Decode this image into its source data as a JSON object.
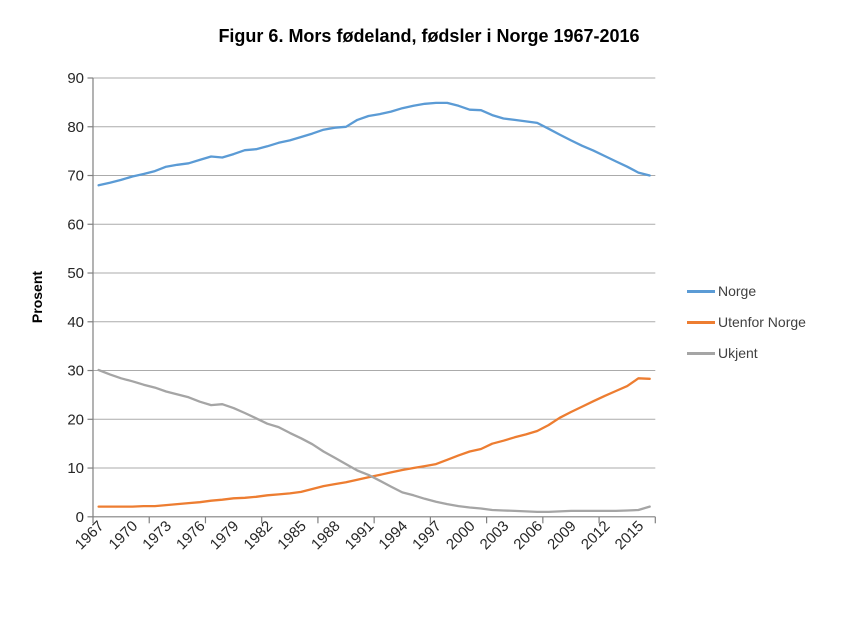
{
  "chart_data": {
    "type": "line",
    "title": "Figur 6. Mors fødeland, fødsler i Norge 1967-2016",
    "xlabel": "",
    "ylabel": "Prosent",
    "x_range": [
      1967,
      2016
    ],
    "x_tick_labels": [
      "1967",
      "1970",
      "1973",
      "1976",
      "1979",
      "1982",
      "1985",
      "1988",
      "1991",
      "1994",
      "1997",
      "2000",
      "2003",
      "2006",
      "2009",
      "2012",
      "2015"
    ],
    "ylim": [
      0,
      90
    ],
    "y_tick_step": 10,
    "y_tick_labels": [
      "0",
      "10",
      "20",
      "30",
      "40",
      "50",
      "60",
      "70",
      "80",
      "90"
    ],
    "grid": "horizontal",
    "grid_color": "#ababab",
    "axis_color": "#808080",
    "text_color": "#262626",
    "legend_position": "right",
    "series": [
      {
        "name": "Norge",
        "color": "#5B9BD5",
        "values": [
          68.0,
          68.5,
          69.1,
          69.8,
          70.3,
          70.9,
          71.8,
          72.2,
          72.5,
          73.2,
          73.9,
          73.7,
          74.4,
          75.2,
          75.4,
          76.0,
          76.7,
          77.2,
          77.9,
          78.6,
          79.4,
          79.8,
          80.0,
          81.4,
          82.2,
          82.6,
          83.1,
          83.8,
          84.3,
          84.7,
          84.9,
          84.9,
          84.3,
          83.5,
          83.4,
          82.4,
          81.7,
          81.4,
          81.1,
          80.8,
          79.6,
          78.4,
          77.2,
          76.1,
          75.1,
          74.0,
          72.9,
          71.8,
          70.6,
          70.0
        ]
      },
      {
        "name": "Utenfor Norge",
        "color": "#ED7D31",
        "values": [
          2.1,
          2.1,
          2.1,
          2.1,
          2.2,
          2.2,
          2.4,
          2.6,
          2.8,
          3.0,
          3.3,
          3.5,
          3.8,
          3.9,
          4.1,
          4.4,
          4.6,
          4.8,
          5.1,
          5.7,
          6.3,
          6.7,
          7.1,
          7.6,
          8.1,
          8.6,
          9.1,
          9.6,
          10.0,
          10.4,
          10.8,
          11.7,
          12.6,
          13.4,
          13.9,
          15.0,
          15.6,
          16.3,
          16.9,
          17.6,
          18.8,
          20.3,
          21.5,
          22.6,
          23.7,
          24.8,
          25.8,
          26.8,
          28.4,
          28.3
        ]
      },
      {
        "name": "Ukjent",
        "color": "#A5A5A5",
        "values": [
          30.1,
          29.2,
          28.4,
          27.8,
          27.1,
          26.5,
          25.7,
          25.1,
          24.5,
          23.6,
          22.9,
          23.1,
          22.3,
          21.3,
          20.2,
          19.1,
          18.4,
          17.2,
          16.1,
          14.9,
          13.4,
          12.1,
          10.8,
          9.5,
          8.6,
          7.4,
          6.2,
          5.0,
          4.4,
          3.7,
          3.1,
          2.6,
          2.2,
          1.9,
          1.7,
          1.4,
          1.3,
          1.2,
          1.1,
          1.0,
          1.0,
          1.1,
          1.2,
          1.2,
          1.2,
          1.2,
          1.2,
          1.3,
          1.4,
          2.1
        ]
      }
    ]
  }
}
